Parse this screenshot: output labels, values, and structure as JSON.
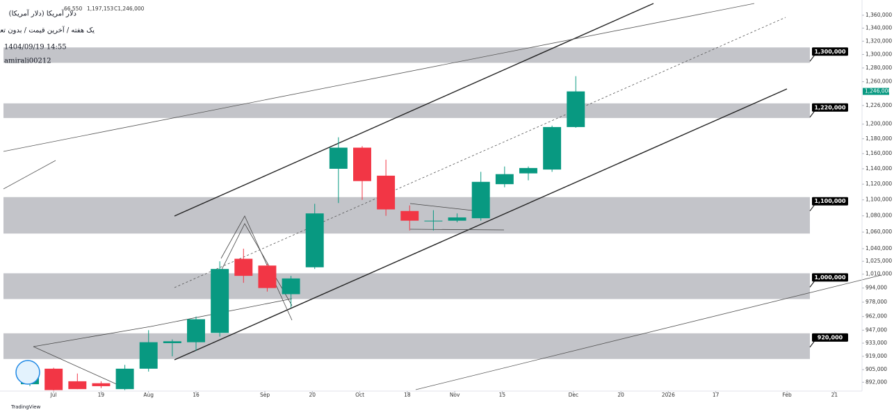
{
  "chart_data": {
    "type": "candlestick",
    "title": "دلار آمریکا (دلار آمریکا)",
    "subtitle": "یک هفته / آخرین قیمت / بدون تعدیل",
    "ohlc_line": [
      "66,550",
      "1,197,153",
      "C1,246,000"
    ],
    "timestamp": "1404/09/19 14:55",
    "author": "amirali00212",
    "brand": "TradingView",
    "log_scale": true,
    "up_color": "#089981",
    "down_color": "#f23645",
    "open": [
      890000,
      906000,
      893000,
      891000,
      885000,
      906000,
      933000,
      934000,
      944000,
      1028000,
      1020000,
      987000,
      1018000,
      1140000,
      1168000,
      1131000,
      1086000,
      1074000,
      1074000,
      1077000,
      1120000,
      1134000,
      1139000,
      1196000
    ],
    "high": [
      906000,
      907000,
      901000,
      893000,
      910000,
      947000,
      937000,
      962000,
      1025000,
      1040000,
      1022000,
      1008000,
      1095000,
      1182000,
      1170000,
      1152000,
      1093000,
      1087000,
      1083000,
      1136000,
      1143000,
      1143000,
      1198000,
      1268000
    ],
    "low": [
      888000,
      883500,
      885000,
      886000,
      884000,
      903000,
      919000,
      925000,
      940000,
      1000000,
      990000,
      972000,
      1016000,
      1096000,
      1100000,
      1080000,
      1062000,
      1062000,
      1072000,
      1074000,
      1116000,
      1125000,
      1136000,
      1195000
    ],
    "close": [
      906000,
      884000,
      885000,
      888000,
      906000,
      934000,
      935000,
      959000,
      1016000,
      1008000,
      994000,
      1005000,
      1083000,
      1168000,
      1124000,
      1088000,
      1074000,
      1074000,
      1078000,
      1123000,
      1133000,
      1141000,
      1196000,
      1246000
    ],
    "last_price_label": "1,246,000",
    "xlim": [
      -1.26,
      35.06
    ],
    "ylim": [
      883000,
      1384000
    ],
    "xticks": [
      {
        "value": 1,
        "label": "Jul"
      },
      {
        "value": 3,
        "label": "19"
      },
      {
        "value": 5,
        "label": "Aug"
      },
      {
        "value": 7,
        "label": "16"
      },
      {
        "value": 9.9,
        "label": "Sep"
      },
      {
        "value": 11.9,
        "label": "20"
      },
      {
        "value": 13.9,
        "label": "Oct"
      },
      {
        "value": 15.9,
        "label": "18"
      },
      {
        "value": 17.9,
        "label": "Nov"
      },
      {
        "value": 19.9,
        "label": "15"
      },
      {
        "value": 22.9,
        "label": "Dec"
      },
      {
        "value": 24.9,
        "label": "20"
      },
      {
        "value": 26.9,
        "label": "2026"
      },
      {
        "value": 28.9,
        "label": "17"
      },
      {
        "value": 31.9,
        "label": "Feb"
      },
      {
        "value": 33.9,
        "label": "21"
      }
    ],
    "yticks": [
      {
        "value": 1360000,
        "label": "1,360,000"
      },
      {
        "value": 1340000,
        "label": "1,340,000"
      },
      {
        "value": 1320000,
        "label": "1,320,000"
      },
      {
        "value": 1300000,
        "label": "1,300,000"
      },
      {
        "value": 1280000,
        "label": "1,280,000"
      },
      {
        "value": 1260000,
        "label": "1,260,000"
      },
      {
        "value": 1226000,
        "label": "1,226,000"
      },
      {
        "value": 1200000,
        "label": "1,200,000"
      },
      {
        "value": 1180000,
        "label": "1,180,000"
      },
      {
        "value": 1160000,
        "label": "1,160,000"
      },
      {
        "value": 1140000,
        "label": "1,140,000"
      },
      {
        "value": 1120000,
        "label": "1,120,000"
      },
      {
        "value": 1100000,
        "label": "1,100,000"
      },
      {
        "value": 1080000,
        "label": "1,080,000"
      },
      {
        "value": 1060000,
        "label": "1,060,000"
      },
      {
        "value": 1040000,
        "label": "1,040,000"
      },
      {
        "value": 1025000,
        "label": "1,025,000"
      },
      {
        "value": 1010000,
        "label": "1,010,000"
      },
      {
        "value": 994000,
        "label": "994,000"
      },
      {
        "value": 978000,
        "label": "978,000"
      },
      {
        "value": 962000,
        "label": "962,000"
      },
      {
        "value": 947000,
        "label": "947,000"
      },
      {
        "value": 933000,
        "label": "933,000"
      },
      {
        "value": 919000,
        "label": "919,000"
      },
      {
        "value": 905000,
        "label": "905,000"
      },
      {
        "value": 892000,
        "label": "892,000"
      }
    ],
    "zones": [
      {
        "label": "1,300,000",
        "high": 1310600,
        "low": 1287600
      },
      {
        "label": "1,220,000",
        "high": 1229000,
        "low": 1208500
      },
      {
        "label": "1,100,000",
        "high": 1103500,
        "low": 1058200
      },
      {
        "label": "1,000,000",
        "high": 1011000,
        "low": 981500
      },
      {
        "label": "920,000",
        "high": 943600,
        "low": 916200
      }
    ]
  }
}
